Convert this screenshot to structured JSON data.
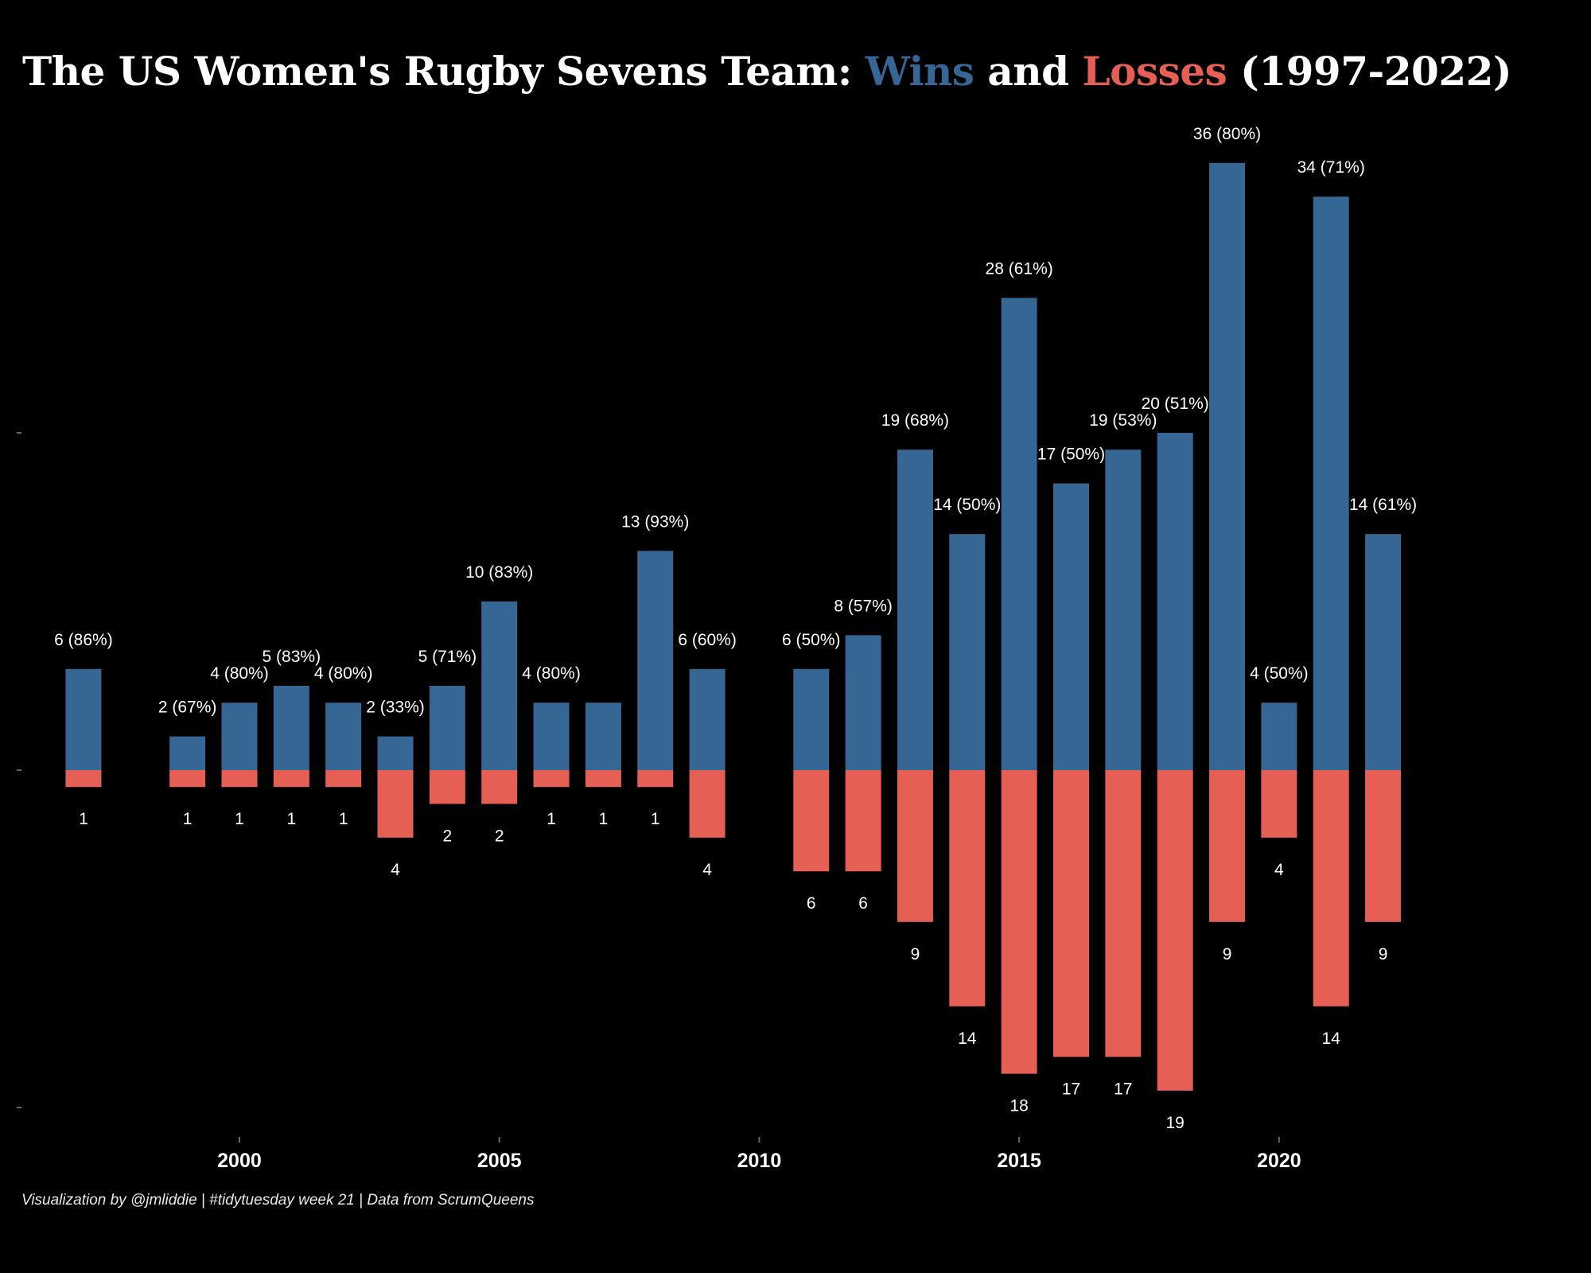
{
  "title": {
    "prefix": "The US Women's Rugby Sevens Team: ",
    "wins_word": "Wins",
    "middle": " and ",
    "losses_word": "Losses",
    "suffix": " (1997-2022)"
  },
  "caption": "Visualization by @jmliddie | #tidytuesday week 21 | Data from ScrumQueens",
  "colors": {
    "wins": "#356694",
    "losses": "#e65f54",
    "background": "#000000",
    "text": "#ffffff"
  },
  "chart_data": {
    "type": "bar",
    "subtype": "diverging-stacked",
    "series": [
      {
        "name": "Wins",
        "color": "#356694"
      },
      {
        "name": "Losses",
        "color": "#e65f54"
      }
    ],
    "records": [
      {
        "year": 1997,
        "wins": 6,
        "losses": 1,
        "win_label": "6 (86%)",
        "loss_label": "1"
      },
      {
        "year": 1999,
        "wins": 2,
        "losses": 1,
        "win_label": "2 (67%)",
        "loss_label": "1"
      },
      {
        "year": 2000,
        "wins": 4,
        "losses": 1,
        "win_label": "4 (80%)",
        "loss_label": "1"
      },
      {
        "year": 2001,
        "wins": 5,
        "losses": 1,
        "win_label": "5 (83%)",
        "loss_label": "1"
      },
      {
        "year": 2002,
        "wins": 4,
        "losses": 1,
        "win_label": "4 (80%)",
        "loss_label": "1"
      },
      {
        "year": 2003,
        "wins": 2,
        "losses": 4,
        "win_label": "2 (33%)",
        "loss_label": "4"
      },
      {
        "year": 2004,
        "wins": 5,
        "losses": 2,
        "win_label": "5 (71%)",
        "loss_label": "2"
      },
      {
        "year": 2005,
        "wins": 10,
        "losses": 2,
        "win_label": "10 (83%)",
        "loss_label": "2"
      },
      {
        "year": 2006,
        "wins": 4,
        "losses": 1,
        "win_label": "4 (80%)",
        "loss_label": "1"
      },
      {
        "year": 2007,
        "wins": 4,
        "losses": 1,
        "win_label": "",
        "loss_label": "1"
      },
      {
        "year": 2008,
        "wins": 13,
        "losses": 1,
        "win_label": "13 (93%)",
        "loss_label": "1"
      },
      {
        "year": 2009,
        "wins": 6,
        "losses": 4,
        "win_label": "6 (60%)",
        "loss_label": "4"
      },
      {
        "year": 2011,
        "wins": 6,
        "losses": 6,
        "win_label": "6 (50%)",
        "loss_label": "6"
      },
      {
        "year": 2012,
        "wins": 8,
        "losses": 6,
        "win_label": "8 (57%)",
        "loss_label": "6"
      },
      {
        "year": 2013,
        "wins": 19,
        "losses": 9,
        "win_label": "19 (68%)",
        "loss_label": "9"
      },
      {
        "year": 2014,
        "wins": 14,
        "losses": 14,
        "win_label": "14 (50%)",
        "loss_label": "14"
      },
      {
        "year": 2015,
        "wins": 28,
        "losses": 18,
        "win_label": "28 (61%)",
        "loss_label": "18"
      },
      {
        "year": 2016,
        "wins": 17,
        "losses": 17,
        "win_label": "17 (50%)",
        "loss_label": "17"
      },
      {
        "year": 2017,
        "wins": 19,
        "losses": 17,
        "win_label": "19 (53%)",
        "loss_label": "17"
      },
      {
        "year": 2018,
        "wins": 20,
        "losses": 19,
        "win_label": "20 (51%)",
        "loss_label": "19"
      },
      {
        "year": 2019,
        "wins": 36,
        "losses": 9,
        "win_label": "36 (80%)",
        "loss_label": "9"
      },
      {
        "year": 2020,
        "wins": 4,
        "losses": 4,
        "win_label": "4 (50%)",
        "loss_label": "4"
      },
      {
        "year": 2021,
        "wins": 34,
        "losses": 14,
        "win_label": "34 (71%)",
        "loss_label": "14"
      },
      {
        "year": 2022,
        "wins": 14,
        "losses": 9,
        "win_label": "14 (61%)",
        "loss_label": "9"
      }
    ],
    "x_ticks": [
      2000,
      2005,
      2010,
      2015,
      2020
    ],
    "xlim": [
      1995.7,
      2024.7
    ],
    "ylim": [
      -20,
      36
    ],
    "y_tick_marks": [
      -20,
      0,
      20
    ],
    "y_tick_labels_shown": false,
    "grid": false,
    "legend": "none (colored words in title)"
  }
}
